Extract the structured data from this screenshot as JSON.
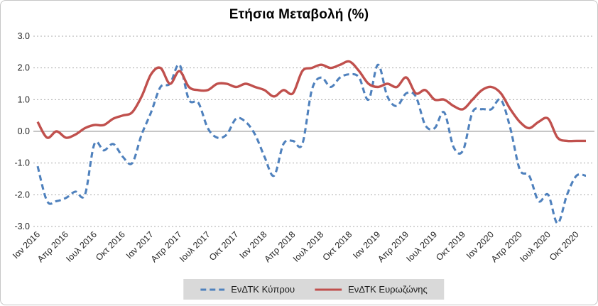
{
  "chart_data": {
    "type": "line",
    "title": "Ετήσια Μεταβολή (%)",
    "xlabel": "",
    "ylabel": "",
    "ylim": [
      -3.0,
      3.0
    ],
    "grid": true,
    "gridline_style": "dotted",
    "zero_axis": "solid",
    "legend_position": "bottom-center",
    "legend_bg": "#d9d9d9",
    "frequency": "monthly",
    "first_point": "Ιαν 2016",
    "last_point": "Νοε 2020",
    "y_ticks": [
      3.0,
      2.0,
      1.0,
      0.0,
      -1.0,
      -2.0,
      -3.0
    ],
    "y_tick_labels": [
      "3.0",
      "2.0",
      "1.0",
      "0.0",
      "-1.0",
      "-2.0",
      "-3.0"
    ],
    "x_tick_every": 3,
    "x_tick_labels": [
      "Ιαν 2016",
      "Απρ 2016",
      "Ιουλ 2016",
      "Οκτ 2016",
      "Ιαν 2017",
      "Απρ 2017",
      "Ιουλ 2017",
      "Οκτ 2017",
      "Ιαν 2018",
      "Απρ 2018",
      "Ιουλ 2018",
      "Οκτ 2018",
      "Ιαν 2019",
      "Απρ 2019",
      "Ιουλ 2019",
      "Οκτ 2019",
      "Ιαν 2020",
      "Απρ 2020",
      "Ιουλ 2020",
      "Οκτ 2020"
    ],
    "series": [
      {
        "name": "ΕνΔΤΚ Κύπρου",
        "color": "#4F81BD",
        "style": "dashed",
        "values": [
          -1.1,
          -2.2,
          -2.2,
          -2.1,
          -1.9,
          -2.0,
          -0.4,
          -0.6,
          -0.4,
          -0.8,
          -1.0,
          -0.1,
          0.6,
          1.4,
          1.5,
          2.1,
          1.0,
          0.9,
          0.1,
          -0.2,
          -0.1,
          0.4,
          0.3,
          -0.1,
          -0.8,
          -1.4,
          -0.4,
          -0.3,
          -0.4,
          1.3,
          1.7,
          1.4,
          1.7,
          1.8,
          1.7,
          1.0,
          2.1,
          1.1,
          0.8,
          1.2,
          1.1,
          0.2,
          0.1,
          0.6,
          -0.5,
          -0.6,
          0.6,
          0.7,
          0.7,
          1.0,
          0.1,
          -1.2,
          -1.4,
          -2.2,
          -2.0,
          -2.9,
          -2.0,
          -1.4,
          -1.4
        ]
      },
      {
        "name": "ΕνΔΤΚ Ευρωζώνης",
        "color": "#C0504D",
        "style": "solid",
        "values": [
          0.3,
          -0.2,
          0.0,
          -0.2,
          -0.1,
          0.1,
          0.2,
          0.2,
          0.4,
          0.5,
          0.6,
          1.1,
          1.8,
          2.0,
          1.5,
          1.9,
          1.4,
          1.3,
          1.3,
          1.5,
          1.5,
          1.4,
          1.5,
          1.4,
          1.3,
          1.1,
          1.3,
          1.2,
          1.9,
          2.0,
          2.1,
          2.0,
          2.1,
          2.2,
          1.9,
          1.5,
          1.4,
          1.5,
          1.4,
          1.7,
          1.2,
          1.3,
          1.0,
          1.0,
          0.8,
          0.7,
          1.0,
          1.3,
          1.4,
          1.2,
          0.7,
          0.3,
          0.1,
          0.3,
          0.4,
          -0.2,
          -0.3,
          -0.3,
          -0.3
        ]
      }
    ],
    "colors": {
      "grid": "#ababab",
      "zero_line": "#8c8c8c",
      "tick_text": "#262626"
    }
  }
}
